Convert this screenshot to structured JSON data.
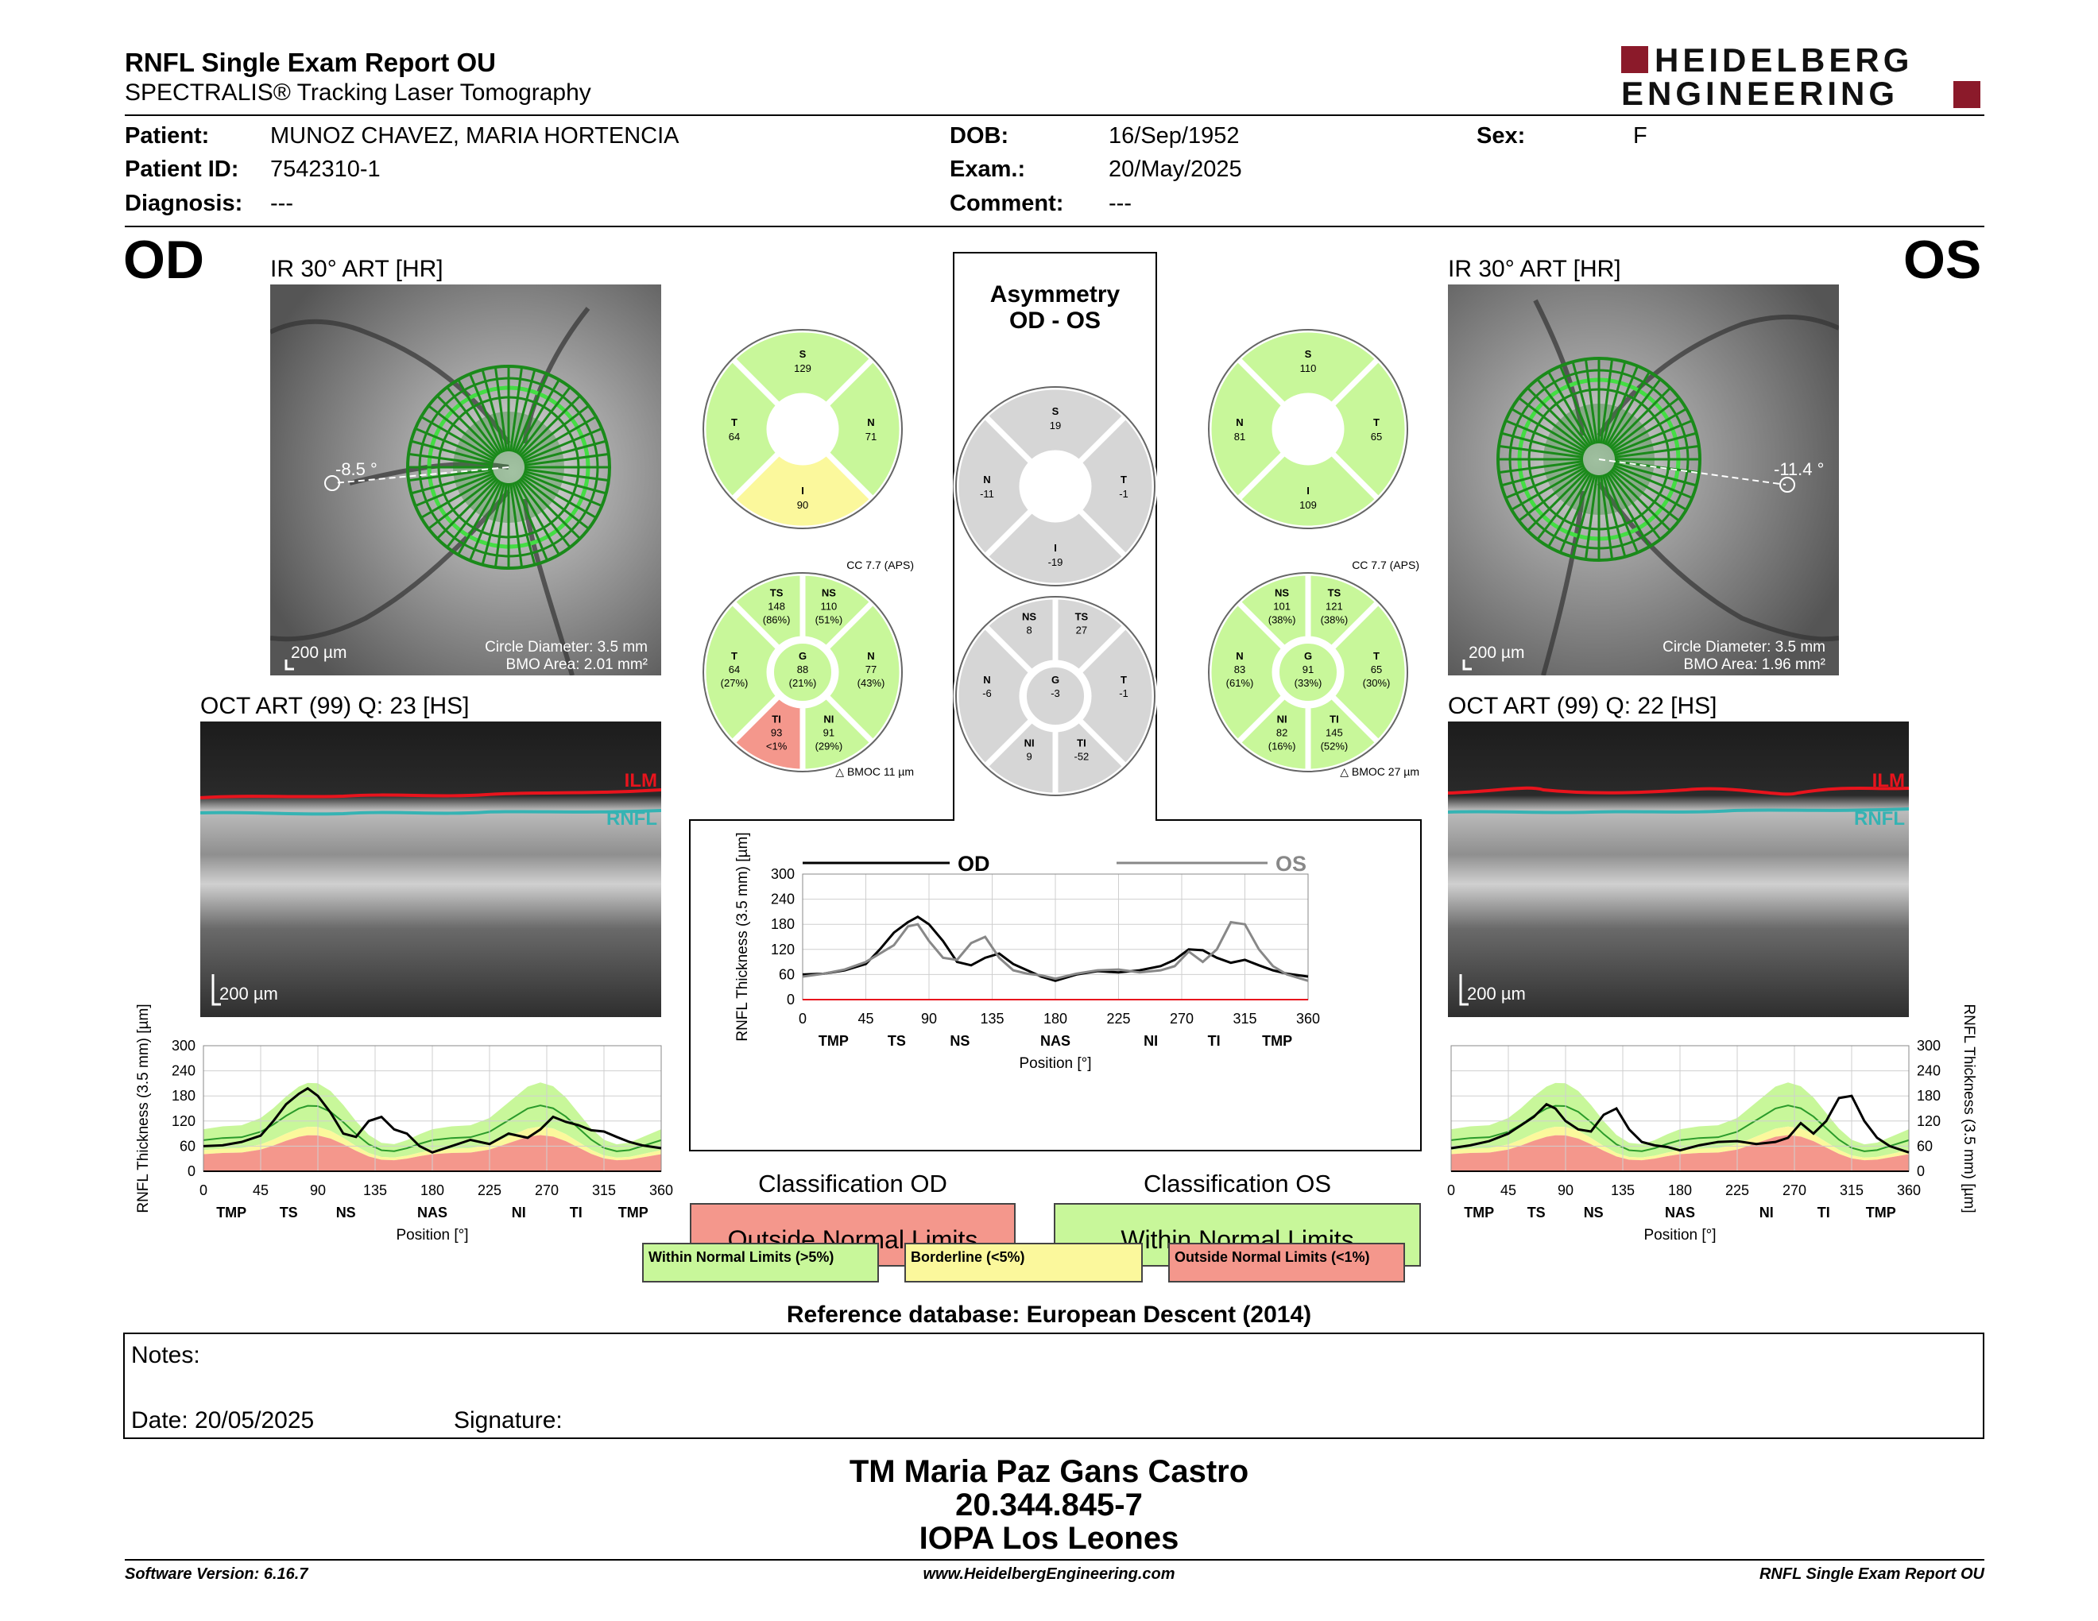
{
  "header": {
    "title": "RNFL Single Exam Report OU",
    "subtitle": "SPECTRALIS® Tracking Laser Tomography",
    "logo_line1": "HEIDELBERG",
    "logo_line2": "ENGINEERING"
  },
  "patient": {
    "patient_label": "Patient:",
    "patient_value": "MUNOZ CHAVEZ, MARIA HORTENCIA",
    "id_label": "Patient ID:",
    "id_value": "7542310-1",
    "diagnosis_label": "Diagnosis:",
    "diagnosis_value": "---",
    "dob_label": "DOB:",
    "dob_value": "16/Sep/1952",
    "exam_label": "Exam.:",
    "exam_value": "20/May/2025",
    "comment_label": "Comment:",
    "comment_value": "---",
    "sex_label": "Sex:",
    "sex_value": "F"
  },
  "od": {
    "eye": "OD",
    "ir_label": "IR 30° ART [HR]",
    "angle": "-8.5 °",
    "scale": "200 µm",
    "circle_diameter": "Circle Diameter: 3.5 mm",
    "bmo_area": "BMO Area: 2.01 mm²",
    "oct_label": "OCT ART (99) Q: 23 [HS]",
    "oct_scale": "200 µm",
    "ilm": "ILM",
    "rnfl": "RNFL",
    "quad": {
      "S": "129",
      "T": "64",
      "N": "71",
      "I": "90"
    },
    "sector": {
      "cc": "CC 7.7 (APS)",
      "TS": [
        "TS",
        "148",
        "(86%)"
      ],
      "NS": [
        "NS",
        "110",
        "(51%)"
      ],
      "T": [
        "T",
        "64",
        "(27%)"
      ],
      "G": [
        "G",
        "88",
        "(21%)"
      ],
      "N": [
        "N",
        "77",
        "(43%)"
      ],
      "TI": [
        "TI",
        "93",
        "<1%"
      ],
      "NI": [
        "NI",
        "91",
        "(29%)"
      ],
      "bmoc": "BMOC 11 µm"
    }
  },
  "os": {
    "eye": "OS",
    "ir_label": "IR 30° ART [HR]",
    "angle": "-11.4 °",
    "scale": "200 µm",
    "circle_diameter": "Circle Diameter: 3.5 mm",
    "bmo_area": "BMO Area: 1.96 mm²",
    "oct_label": "OCT ART (99) Q: 22 [HS]",
    "oct_scale": "200 µm",
    "ilm": "ILM",
    "rnfl": "RNFL",
    "quad": {
      "S": "110",
      "N": "81",
      "T": "65",
      "I": "109"
    },
    "sector": {
      "cc": "CC 7.7 (APS)",
      "NS": [
        "NS",
        "101",
        "(38%)"
      ],
      "TS": [
        "TS",
        "121",
        "(38%)"
      ],
      "N": [
        "N",
        "83",
        "(61%)"
      ],
      "G": [
        "G",
        "91",
        "(33%)"
      ],
      "T": [
        "T",
        "65",
        "(30%)"
      ],
      "NI": [
        "NI",
        "82",
        "(16%)"
      ],
      "TI": [
        "TI",
        "145",
        "(52%)"
      ],
      "bmoc": "BMOC 27 µm"
    }
  },
  "asymmetry": {
    "title1": "Asymmetry",
    "title2": "OD - OS",
    "quad": {
      "S": "19",
      "N": "-11",
      "T": "-1",
      "I": "-19"
    },
    "sector": {
      "NS": "8",
      "TS": "27",
      "N": "-6",
      "G": "-3",
      "T": "-1",
      "NI": "9",
      "TI": "-52"
    },
    "quad_labels": {
      "S": "S",
      "N": "N",
      "T": "T",
      "I": "I"
    },
    "sector_labels": {
      "NS": "NS",
      "TS": "TS",
      "N": "N",
      "G": "G",
      "T": "T",
      "NI": "NI",
      "TI": "TI"
    }
  },
  "chart_data": [
    {
      "type": "line",
      "title": "",
      "xlabel": "Position [°]",
      "ylabel": "RNFL Thickness (3.5 mm) [µm]",
      "xlim": [
        0,
        360
      ],
      "ylim": [
        0,
        300
      ],
      "xticks": [
        0,
        45,
        90,
        135,
        180,
        225,
        270,
        315,
        360
      ],
      "yticks": [
        0,
        60,
        120,
        180,
        240,
        300
      ],
      "sector_labels": [
        "TMP",
        "TS",
        "NS",
        "NAS",
        "NI",
        "TI",
        "TMP"
      ],
      "legend": [
        "OD",
        "OS"
      ],
      "series": [
        {
          "name": "OD",
          "color": "#000000",
          "x": [
            0,
            15,
            30,
            45,
            55,
            65,
            75,
            82,
            90,
            100,
            110,
            120,
            130,
            140,
            150,
            160,
            170,
            180,
            195,
            210,
            225,
            240,
            255,
            265,
            275,
            285,
            295,
            305,
            315,
            325,
            335,
            345,
            360
          ],
          "y": [
            60,
            62,
            70,
            85,
            120,
            160,
            185,
            198,
            180,
            140,
            90,
            82,
            100,
            110,
            85,
            70,
            55,
            45,
            60,
            68,
            65,
            70,
            80,
            95,
            120,
            118,
            100,
            88,
            95,
            82,
            70,
            62,
            55
          ]
        },
        {
          "name": "OS",
          "color": "#888888",
          "x": [
            0,
            15,
            30,
            45,
            55,
            65,
            75,
            82,
            90,
            100,
            110,
            120,
            130,
            140,
            150,
            160,
            170,
            180,
            195,
            210,
            225,
            240,
            255,
            265,
            275,
            285,
            295,
            305,
            315,
            325,
            335,
            345,
            360
          ],
          "y": [
            55,
            62,
            72,
            90,
            110,
            130,
            175,
            180,
            140,
            100,
            95,
            135,
            150,
            100,
            70,
            62,
            58,
            50,
            62,
            70,
            72,
            65,
            70,
            80,
            115,
            90,
            120,
            185,
            180,
            120,
            80,
            60,
            45
          ]
        }
      ]
    },
    {
      "type": "line",
      "title": "",
      "xlabel": "Position [°]",
      "ylabel": "RNFL Thickness (3.5 mm) [µm]",
      "xlim": [
        0,
        360
      ],
      "ylim": [
        0,
        300
      ],
      "xticks": [
        0,
        45,
        90,
        135,
        180,
        225,
        270,
        315,
        360
      ],
      "yticks": [
        0,
        60,
        120,
        180,
        240,
        300
      ],
      "sector_labels": [
        "TMP",
        "TS",
        "NS",
        "NAS",
        "NI",
        "TI",
        "TMP"
      ],
      "series": [
        {
          "name": "OD",
          "color": "#000000",
          "x": [
            0,
            15,
            30,
            45,
            55,
            65,
            75,
            82,
            90,
            100,
            110,
            120,
            130,
            140,
            150,
            160,
            170,
            180,
            195,
            210,
            225,
            240,
            255,
            265,
            275,
            285,
            295,
            305,
            315,
            325,
            335,
            345,
            360
          ],
          "y": [
            60,
            62,
            70,
            85,
            120,
            160,
            185,
            198,
            180,
            140,
            90,
            82,
            120,
            130,
            100,
            90,
            60,
            45,
            60,
            75,
            65,
            90,
            80,
            100,
            130,
            118,
            110,
            98,
            95,
            82,
            70,
            62,
            55
          ]
        }
      ]
    },
    {
      "type": "line",
      "title": "",
      "xlabel": "Position [°]",
      "ylabel": "RNFL Thickness (3.5 mm) [µm]",
      "xlim": [
        0,
        360
      ],
      "ylim": [
        0,
        300
      ],
      "xticks": [
        0,
        45,
        90,
        135,
        180,
        225,
        270,
        315,
        360
      ],
      "yticks": [
        0,
        60,
        120,
        180,
        240,
        300
      ],
      "sector_labels": [
        "TMP",
        "TS",
        "NS",
        "NAS",
        "NI",
        "TI",
        "TMP"
      ],
      "series": [
        {
          "name": "OS",
          "color": "#000000",
          "x": [
            0,
            15,
            30,
            45,
            55,
            65,
            75,
            82,
            90,
            100,
            110,
            120,
            130,
            140,
            150,
            160,
            170,
            180,
            195,
            210,
            225,
            240,
            255,
            265,
            275,
            285,
            295,
            305,
            315,
            325,
            335,
            345,
            360
          ],
          "y": [
            55,
            62,
            72,
            90,
            110,
            130,
            160,
            150,
            120,
            100,
            95,
            135,
            150,
            100,
            70,
            62,
            58,
            50,
            62,
            70,
            72,
            65,
            70,
            80,
            115,
            90,
            120,
            175,
            180,
            120,
            80,
            60,
            45
          ]
        }
      ]
    }
  ],
  "classification": {
    "od_title": "Classification OD",
    "od_value": "Outside Normal Limits",
    "od_color": "#f4978c",
    "os_title": "Classification OS",
    "os_value": "Within Normal Limits",
    "os_color": "#c8f79a",
    "legend_within": "Within Normal Limits (>5%)",
    "legend_border": "Borderline (<5%)",
    "legend_outside": "Outside Normal Limits (<1%)",
    "green": "#c8f79a",
    "yellow": "#fbf89c",
    "red": "#f4978c",
    "gray": "#d6d6d6"
  },
  "reference": "Reference database: European Descent (2014)",
  "notes": {
    "label": "Notes:",
    "date": "Date: 20/05/2025",
    "signature": "Signature:"
  },
  "signature_block": {
    "name": "TM Maria Paz Gans Castro",
    "id": "20.344.845-7",
    "org": "IOPA Los Leones"
  },
  "footer": {
    "software": "Software Version: 6.16.7",
    "url": "www.HeidelbergEngineering.com",
    "report": "RNFL Single Exam Report OU"
  }
}
